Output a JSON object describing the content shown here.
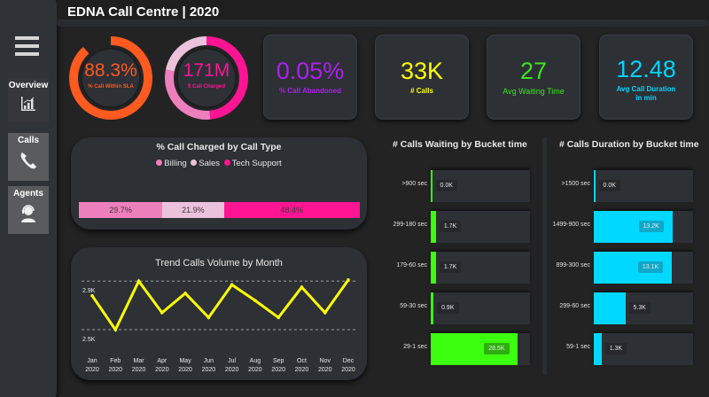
{
  "header": {
    "title": "EDNA Call Centre | 2020"
  },
  "sidebar": {
    "menu_icon": "hamburger-icon",
    "items": [
      {
        "label": "Overview",
        "icon": "bar-chart-icon",
        "active": true
      },
      {
        "label": "Calls",
        "icon": "phone-icon",
        "active": false
      },
      {
        "label": "Agents",
        "icon": "headset-agent-icon",
        "active": false
      }
    ]
  },
  "donuts": [
    {
      "value": "88.3%",
      "caption": "% Call Within SLA",
      "fraction": 0.883,
      "color": "#ff5a1f",
      "track": "#2d3035"
    },
    {
      "value": "171M",
      "caption": "$ Call Charged",
      "color": "#ff1493"
    }
  ],
  "kpis": [
    {
      "value": "0.05%",
      "caption": "% Call Abandoned",
      "color": "#b01ff0"
    },
    {
      "value": "33K",
      "caption": "# Calls",
      "color": "#ffff00"
    },
    {
      "value": "27",
      "caption": "Avg Waiting Time",
      "color": "#3ee61e"
    },
    {
      "value": "12.48",
      "caption": "Avg Call Duration",
      "caption2": "in min",
      "color": "#00d4ff"
    }
  ],
  "chart_data": [
    {
      "type": "bar",
      "orientation": "horizontal-stacked-100",
      "title": "% Call Charged by Call Type",
      "legend_position": "top",
      "categories": [
        "Billing",
        "Sales",
        "Tech Support"
      ],
      "values": [
        29.7,
        21.9,
        48.4
      ],
      "labels": [
        "29.7%",
        "21.9%",
        "48.4%"
      ],
      "colors": [
        "#ee7fbd",
        "#ecc1dc",
        "#ff1493"
      ]
    },
    {
      "type": "line",
      "title": "Trend Calls Volume by Month",
      "x": [
        "Jan 2020",
        "Feb 2020",
        "Mar 2020",
        "Apr 2020",
        "May 2020",
        "Jun 2020",
        "Jul 2020",
        "Aug 2020",
        "Sep 2020",
        "Oct 2020",
        "Nov 2020",
        "Dec 2020"
      ],
      "x_month": [
        "Jan",
        "Feb",
        "Mar",
        "Apr",
        "May",
        "Jun",
        "Jul",
        "Aug",
        "Sep",
        "Oct",
        "Nov",
        "Dec"
      ],
      "x_year": "2020",
      "values": [
        2780,
        2500,
        2900,
        2640,
        2800,
        2600,
        2870,
        2740,
        2600,
        2850,
        2640,
        2910
      ],
      "yticks": [
        2900,
        2500
      ],
      "ytick_labels": [
        "2.9K",
        "2.5K"
      ],
      "ylim": [
        2420,
        2960
      ],
      "grid": true,
      "color": "#ffff00"
    },
    {
      "type": "bar",
      "orientation": "horizontal",
      "title": "# Calls Waiting by Bucket time",
      "categories": [
        ">900 sec",
        "299-180 sec",
        "179-60 sec",
        "59-30 sec",
        "29-1 sec"
      ],
      "values": [
        0.0,
        1.7,
        1.7,
        0.9,
        28.5
      ],
      "labels": [
        "0.0K",
        "1.7K",
        "1.7K",
        "0.9K",
        "28.5K"
      ],
      "xmax": 32.5,
      "color": "#3cff0f"
    },
    {
      "type": "bar",
      "orientation": "horizontal",
      "title": "# Calls Duration by Bucket time",
      "categories": [
        ">1500 sec",
        "1499-900 sec",
        "899-300 sec",
        "299-60 sec",
        "59-1 sec"
      ],
      "values": [
        0.0,
        13.2,
        13.1,
        5.3,
        1.3
      ],
      "labels": [
        "0.0K",
        "13.2K",
        "13.1K",
        "5.3K",
        "1.3K"
      ],
      "xmax": 16.7,
      "color": "#00d8ff"
    }
  ]
}
